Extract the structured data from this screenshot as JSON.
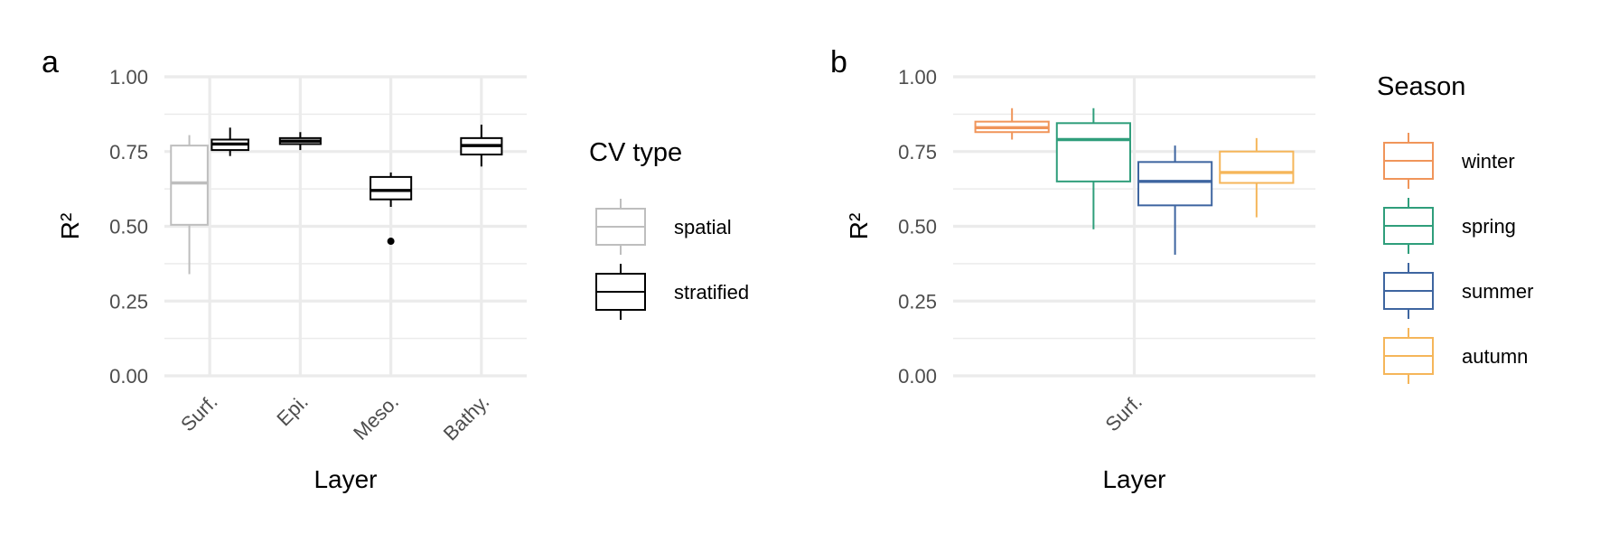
{
  "chart_data": [
    {
      "type": "boxplot",
      "panel_label": "a",
      "xlabel": "Layer",
      "ylabel": "R²",
      "ylim": [
        0,
        1
      ],
      "yticks": [
        "0.00",
        "0.25",
        "0.50",
        "0.75",
        "1.00"
      ],
      "categories": [
        "Surf.",
        "Epi.",
        "Meso.",
        "Bathy."
      ],
      "legend": {
        "title": "CV type",
        "position": "right"
      },
      "series": [
        {
          "name": "spatial",
          "color": "#bebebe",
          "boxes": [
            {
              "category": "Surf.",
              "min": 0.34,
              "q1": 0.505,
              "median": 0.645,
              "q3": 0.77,
              "max": 0.805,
              "outliers": []
            }
          ]
        },
        {
          "name": "stratified",
          "color": "#000000",
          "boxes": [
            {
              "category": "Surf.",
              "min": 0.735,
              "q1": 0.755,
              "median": 0.775,
              "q3": 0.79,
              "max": 0.83,
              "outliers": []
            },
            {
              "category": "Epi.",
              "min": 0.755,
              "q1": 0.775,
              "median": 0.785,
              "q3": 0.795,
              "max": 0.815,
              "outliers": []
            },
            {
              "category": "Meso.",
              "min": 0.565,
              "q1": 0.59,
              "median": 0.62,
              "q3": 0.665,
              "max": 0.68,
              "outliers": [
                0.45
              ]
            },
            {
              "category": "Bathy.",
              "min": 0.7,
              "q1": 0.74,
              "median": 0.77,
              "q3": 0.795,
              "max": 0.84,
              "outliers": []
            }
          ]
        }
      ]
    },
    {
      "type": "boxplot",
      "panel_label": "b",
      "xlabel": "Layer",
      "ylabel": "R²",
      "ylim": [
        0,
        1
      ],
      "yticks": [
        "0.00",
        "0.25",
        "0.50",
        "0.75",
        "1.00"
      ],
      "categories": [
        "Surf."
      ],
      "legend": {
        "title": "Season",
        "position": "right"
      },
      "series": [
        {
          "name": "winter",
          "color": "#f0955a",
          "boxes": [
            {
              "category": "Surf.",
              "min": 0.79,
              "q1": 0.815,
              "median": 0.83,
              "q3": 0.85,
              "max": 0.895,
              "outliers": []
            }
          ]
        },
        {
          "name": "spring",
          "color": "#2f9e7b",
          "boxes": [
            {
              "category": "Surf.",
              "min": 0.49,
              "q1": 0.65,
              "median": 0.79,
              "q3": 0.845,
              "max": 0.895,
              "outliers": []
            }
          ]
        },
        {
          "name": "summer",
          "color": "#3e65a0",
          "boxes": [
            {
              "category": "Surf.",
              "min": 0.405,
              "q1": 0.57,
              "median": 0.65,
              "q3": 0.715,
              "max": 0.77,
              "outliers": []
            }
          ]
        },
        {
          "name": "autumn",
          "color": "#f5b65a",
          "boxes": [
            {
              "category": "Surf.",
              "min": 0.53,
              "q1": 0.645,
              "median": 0.68,
              "q3": 0.75,
              "max": 0.795,
              "outliers": []
            }
          ]
        }
      ]
    }
  ]
}
